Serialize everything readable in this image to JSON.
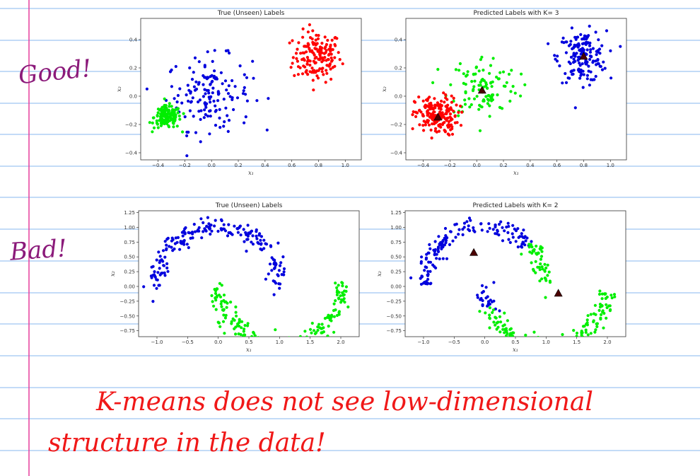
{
  "annotations": {
    "good": "Good!",
    "bad": "Bad!",
    "line1": "K-means does not see low-dimensional",
    "line2": "structure in the data!"
  },
  "colors": {
    "red": "#ff0000",
    "green": "#00ee00",
    "blue": "#0000dd",
    "centroid": "#4a0000",
    "note_purple": "#8b1a7a",
    "note_red": "#f01818",
    "rule_line": "#9fc5f2",
    "margin_line": "#e63e9b"
  },
  "chart_data": [
    {
      "type": "scatter",
      "title": "True (Unseen) Labels",
      "xlabel": "x₁",
      "ylabel": "x₂",
      "xlim": [
        -0.53,
        1.12
      ],
      "ylim": [
        -0.45,
        0.55
      ],
      "xticks": [
        -0.4,
        -0.2,
        0.0,
        0.2,
        0.4,
        0.6,
        0.8,
        1.0
      ],
      "xtick_labels": [
        "−0.4",
        "−0.2",
        "0.0",
        "0.2",
        "0.4",
        "0.6",
        "0.8",
        "1.0"
      ],
      "yticks": [
        -0.4,
        -0.2,
        0.0,
        0.2,
        0.4
      ],
      "ytick_labels": [
        "−0.4",
        "−0.2",
        "0.0",
        "0.2",
        "0.4"
      ],
      "series": [
        {
          "color": "red",
          "shape": "blob",
          "center": [
            0.79,
            0.28
          ],
          "spread": [
            0.09,
            0.09
          ],
          "count": 160
        },
        {
          "color": "blue",
          "shape": "blob",
          "center": [
            -0.02,
            0.02
          ],
          "spread": [
            0.16,
            0.13
          ],
          "count": 150
        },
        {
          "color": "green",
          "shape": "blob",
          "center": [
            -0.33,
            -0.15
          ],
          "spread": [
            0.05,
            0.04
          ],
          "count": 150
        }
      ],
      "centroids": []
    },
    {
      "type": "scatter",
      "title": "Predicted Labels with K= 3",
      "xlabel": "x₁",
      "ylabel": "x₂",
      "xlim": [
        -0.53,
        1.12
      ],
      "ylim": [
        -0.45,
        0.55
      ],
      "xticks": [
        -0.4,
        -0.2,
        0.0,
        0.2,
        0.4,
        0.6,
        0.8,
        1.0
      ],
      "xtick_labels": [
        "−0.4",
        "−0.2",
        "0.0",
        "0.2",
        "0.4",
        "0.6",
        "0.8",
        "1.0"
      ],
      "yticks": [
        -0.4,
        -0.2,
        0.0,
        0.2,
        0.4
      ],
      "ytick_labels": [
        "−0.4",
        "−0.2",
        "0.0",
        "0.2",
        "0.4"
      ],
      "series": [
        {
          "color": "blue",
          "shape": "blob",
          "center": [
            0.79,
            0.28
          ],
          "spread": [
            0.09,
            0.09
          ],
          "count": 160
        },
        {
          "color": "green",
          "shape": "blob",
          "center": [
            0.05,
            0.07
          ],
          "spread": [
            0.13,
            0.11
          ],
          "count": 110
        },
        {
          "color": "red",
          "shape": "blob",
          "center": [
            -0.3,
            -0.14
          ],
          "spread": [
            0.08,
            0.07
          ],
          "count": 190
        }
      ],
      "centroids": [
        [
          0.8,
          0.28
        ],
        [
          0.04,
          0.04
        ],
        [
          -0.29,
          -0.15
        ]
      ]
    },
    {
      "type": "scatter",
      "title": "True (Unseen) Labels",
      "xlabel": "x₁",
      "ylabel": "x₂",
      "xlim": [
        -1.3,
        2.3
      ],
      "ylim": [
        -0.85,
        1.28
      ],
      "xticks": [
        -1.0,
        -0.5,
        0.0,
        0.5,
        1.0,
        1.5,
        2.0
      ],
      "xtick_labels": [
        "−1.0",
        "−0.5",
        "0.0",
        "0.5",
        "1.0",
        "1.5",
        "2.0"
      ],
      "yticks": [
        -0.75,
        -0.5,
        -0.25,
        0.0,
        0.25,
        0.5,
        0.75,
        1.0,
        1.25
      ],
      "ytick_labels": [
        "−0.75",
        "−0.50",
        "−0.25",
        "0.00",
        "0.25",
        "0.50",
        "0.75",
        "1.00",
        "1.25"
      ],
      "series": [
        {
          "color": "blue",
          "shape": "upper-moon",
          "tmin": 0,
          "tmax": 1,
          "count": 200
        },
        {
          "color": "green",
          "shape": "lower-moon",
          "tmin": 0,
          "tmax": 1,
          "count": 200
        }
      ],
      "centroids": []
    },
    {
      "type": "scatter",
      "title": "Predicted Labels with K= 2",
      "xlabel": "x₁",
      "ylabel": "x₂",
      "xlim": [
        -1.3,
        2.3
      ],
      "ylim": [
        -0.85,
        1.28
      ],
      "xticks": [
        -1.0,
        -0.5,
        0.0,
        0.5,
        1.0,
        1.5,
        2.0
      ],
      "xtick_labels": [
        "−1.0",
        "−0.5",
        "0.0",
        "0.5",
        "1.0",
        "1.5",
        "2.0"
      ],
      "yticks": [
        -0.75,
        -0.5,
        -0.25,
        0.0,
        0.25,
        0.5,
        0.75,
        1.0,
        1.25
      ],
      "ytick_labels": [
        "−0.75",
        "−0.50",
        "−0.25",
        "0.00",
        "0.25",
        "0.50",
        "0.75",
        "1.00",
        "1.25"
      ],
      "series": [
        {
          "color": "blue",
          "shape": "upper-moon",
          "tmin": 0,
          "tmax": 0.75,
          "count": 150
        },
        {
          "color": "green",
          "shape": "upper-moon",
          "tmin": 0.75,
          "tmax": 1,
          "count": 50
        },
        {
          "color": "blue",
          "shape": "lower-moon",
          "tmin": 0,
          "tmax": 0.12,
          "count": 25
        },
        {
          "color": "green",
          "shape": "lower-moon",
          "tmin": 0.12,
          "tmax": 1,
          "count": 175
        }
      ],
      "centroids": [
        [
          -0.18,
          0.57
        ],
        [
          1.2,
          -0.12
        ]
      ]
    }
  ]
}
